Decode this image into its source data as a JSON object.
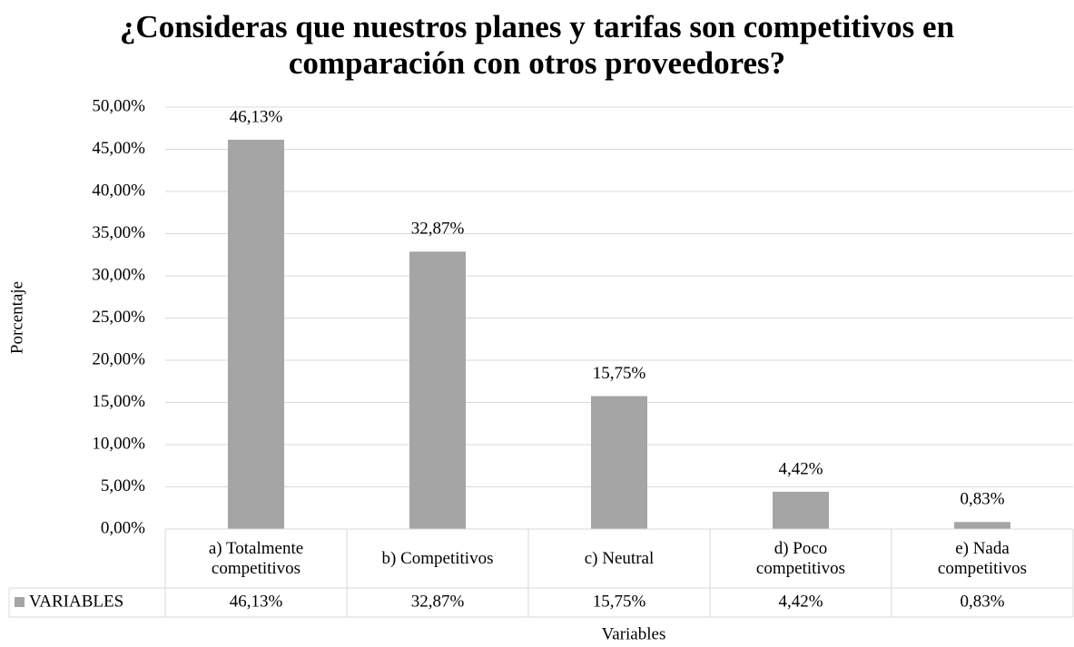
{
  "chart_data": {
    "type": "bar",
    "title": "¿Consideras que nuestros planes y tarifas son competitivos en comparación con otros proveedores?",
    "x_label": "Variables",
    "y_label": "Porcentaje",
    "categories": [
      "a) Totalmente competitivos",
      "b) Competitivos",
      "c) Neutral",
      "d) Poco competitivos",
      "e) Nada competitivos"
    ],
    "series": [
      {
        "name": "VARIABLES",
        "color": "#a5a5a5",
        "values": [
          46.13,
          32.87,
          15.75,
          4.42,
          0.83
        ],
        "value_labels": [
          "46,13%",
          "32,87%",
          "15,75%",
          "4,42%",
          "0,83%"
        ]
      }
    ],
    "ylim": [
      0,
      50
    ],
    "yticks": [
      {
        "value": 0,
        "label": "0,00%"
      },
      {
        "value": 5,
        "label": "5,00%"
      },
      {
        "value": 10,
        "label": "10,00%"
      },
      {
        "value": 15,
        "label": "15,00%"
      },
      {
        "value": 20,
        "label": "20,00%"
      },
      {
        "value": 25,
        "label": "25,00%"
      },
      {
        "value": 30,
        "label": "30,00%"
      },
      {
        "value": 35,
        "label": "35,00%"
      },
      {
        "value": 40,
        "label": "40,00%"
      },
      {
        "value": 45,
        "label": "45,00%"
      },
      {
        "value": 50,
        "label": "50,00%"
      }
    ],
    "grid": true,
    "data_table": true
  }
}
